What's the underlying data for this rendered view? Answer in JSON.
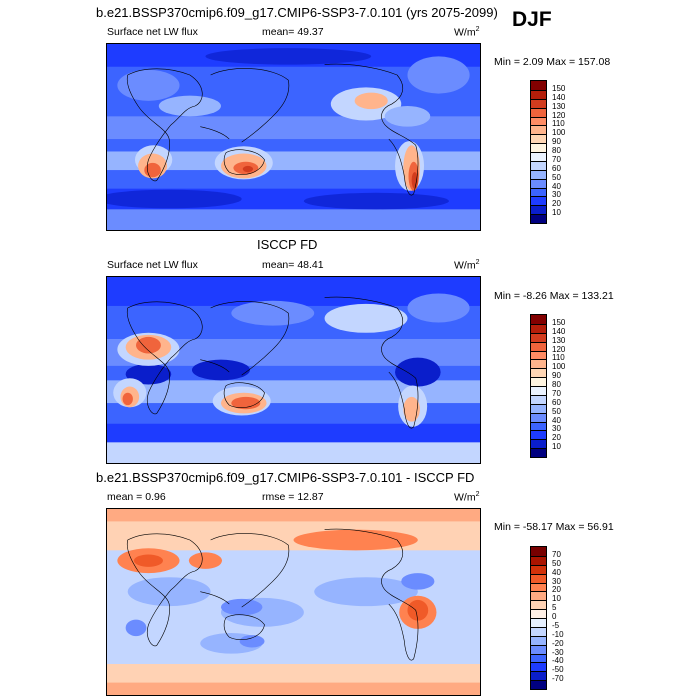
{
  "season": "DJF",
  "colors": {
    "abs_scale": [
      "#000080",
      "#0a1ecb",
      "#1e3cff",
      "#3c64ff",
      "#6b8cff",
      "#96b4ff",
      "#c3d6ff",
      "#ebf3ff",
      "#fff5e1",
      "#ffd6b4",
      "#ffb48c",
      "#ff8c64",
      "#f0643c",
      "#d23c1e",
      "#b41e0a",
      "#820000"
    ],
    "diff_scale": [
      "#000080",
      "#0a1ecb",
      "#1e3cff",
      "#3c64ff",
      "#6b8cff",
      "#96b4ff",
      "#c3d6ff",
      "#e6f0ff",
      "#fff0e6",
      "#ffd2b4",
      "#ffaa82",
      "#ff8250",
      "#f05a28",
      "#d2320a",
      "#aa1400",
      "#780000"
    ]
  },
  "panels": [
    {
      "title": "b.e21.BSSP370cmip6.f09_g17.CMIP6-SSP3-7.0.101 (yrs 2075-2099)",
      "left_label": "Surface net LW flux",
      "stat_label": "mean=",
      "stat_value": "49.37",
      "units": "W/m",
      "units_sup": "2",
      "minmax": "Min =   2.09 Max = 157.08",
      "levels": [
        "150",
        "140",
        "130",
        "120",
        "110",
        "100",
        "90",
        "80",
        "70",
        "60",
        "50",
        "40",
        "30",
        "20",
        "10"
      ],
      "scale": "abs_scale"
    },
    {
      "title": "ISCCP FD",
      "left_label": "Surface net LW flux",
      "stat_label": "mean=",
      "stat_value": "48.41",
      "units": "W/m",
      "units_sup": "2",
      "minmax": "Min =  -8.26 Max = 133.21",
      "levels": [
        "150",
        "140",
        "130",
        "120",
        "110",
        "100",
        "90",
        "80",
        "70",
        "60",
        "50",
        "40",
        "30",
        "20",
        "10"
      ],
      "scale": "abs_scale"
    },
    {
      "title": "b.e21.BSSP370cmip6.f09_g17.CMIP6-SSP3-7.0.101 - ISCCP FD",
      "left_label": "mean =   0.96",
      "stat_label": "rmse =",
      "stat_value": "12.87",
      "units": "W/m",
      "units_sup": "2",
      "minmax": "Min = -58.17 Max =  56.91",
      "levels": [
        "70",
        "50",
        "40",
        "30",
        "20",
        "10",
        "5",
        "0",
        "-5",
        "-10",
        "-20",
        "-30",
        "-40",
        "-50",
        "-70"
      ],
      "scale": "diff_scale"
    }
  ]
}
